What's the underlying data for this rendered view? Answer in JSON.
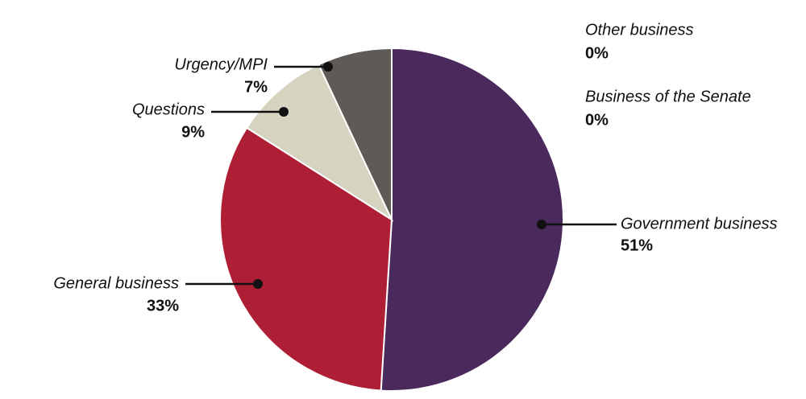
{
  "chart_data": {
    "type": "pie",
    "categories": [
      "Government business",
      "General business",
      "Questions",
      "Urgency/MPI",
      "Other business",
      "Business of the Senate"
    ],
    "values": [
      51,
      33,
      9,
      7,
      0,
      0
    ],
    "value_labels": [
      "51%",
      "33%",
      "9%",
      "7%",
      "0%",
      "0%"
    ],
    "colors": [
      "#4a2a5c",
      "#ae1f36",
      "#d6d3c1",
      "#5f5a55",
      "#888888",
      "#aaaaaa"
    ]
  }
}
